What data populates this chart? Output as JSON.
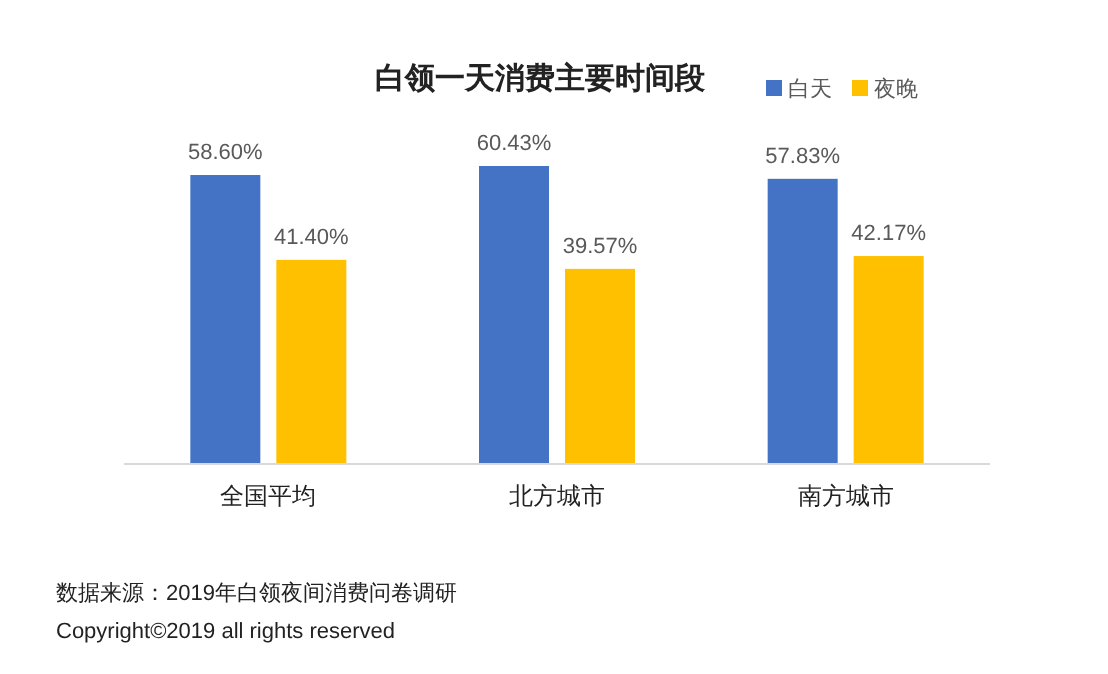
{
  "chart_data": {
    "type": "bar",
    "title": "白领一天消费主要时间段",
    "categories": [
      "全国平均",
      "北方城市",
      "南方城市"
    ],
    "series": [
      {
        "name": "白天",
        "color": "#4472c4",
        "values": [
          58.6,
          60.43,
          57.83
        ],
        "value_labels": [
          "58.60%",
          "60.43%",
          "57.83%"
        ]
      },
      {
        "name": "夜晚",
        "color": "#ffc000",
        "values": [
          41.4,
          39.57,
          42.17
        ],
        "value_labels": [
          "41.40%",
          "39.57%",
          "42.17%"
        ]
      }
    ],
    "legend": "top right",
    "annotations": [
      "数据来源：2019年白领夜间消费问卷调研",
      "Copyright©2019 all rights reserved"
    ]
  }
}
